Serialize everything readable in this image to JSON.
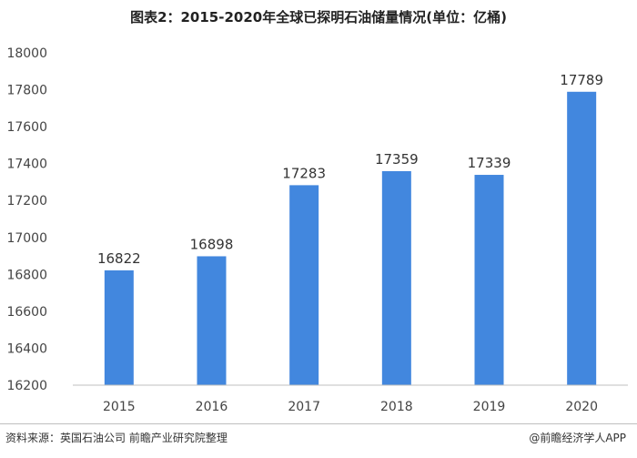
{
  "title": "图表2：2015-2020年全球已探明石油储量情况(单位：亿桶)",
  "source": "资料来源：英国石油公司 前瞻产业研究院整理",
  "credit": "@前瞻经济学人APP",
  "colors": {
    "bar": "#4287de",
    "axis": "#bfbfbf"
  },
  "chart_data": {
    "type": "bar",
    "title": "图表2：2015-2020年全球已探明石油储量情况(单位：亿桶)",
    "categories": [
      "2015",
      "2016",
      "2017",
      "2018",
      "2019",
      "2020"
    ],
    "values": [
      16822,
      16898,
      17283,
      17359,
      17339,
      17789
    ],
    "ylim": [
      16200,
      18000
    ],
    "yticks": [
      16200,
      16400,
      16600,
      16800,
      17000,
      17200,
      17400,
      17600,
      17800,
      18000
    ],
    "grid": false,
    "legend": "none"
  }
}
